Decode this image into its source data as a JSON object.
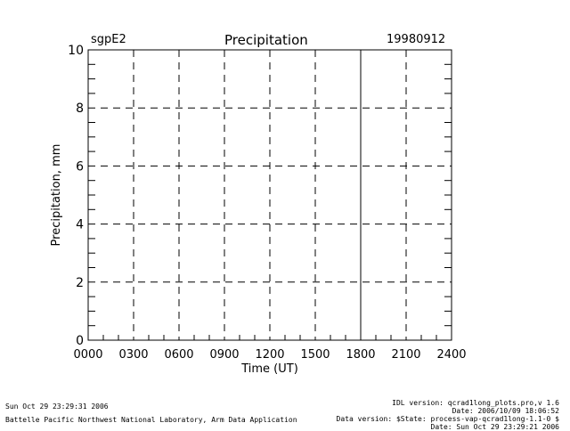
{
  "header": {
    "site": "sgpE2",
    "title": "Precipitation",
    "date": "19980912"
  },
  "chart_data": {
    "type": "line",
    "title": "Precipitation",
    "xlabel": "Time (UT)",
    "ylabel": "Precipitation, mm",
    "xlim": [
      0,
      24
    ],
    "ylim": [
      0,
      10
    ],
    "x_tick_labels": [
      "0000",
      "0300",
      "0600",
      "0900",
      "1200",
      "1500",
      "1800",
      "2100",
      "2400"
    ],
    "y_tick_labels": [
      "0",
      "2",
      "4",
      "6",
      "8",
      "10"
    ],
    "grid": true,
    "series": [],
    "solid_marker_time": "1800"
  },
  "footer": {
    "timestamp": "Sun Oct 29 23:29:31 2006",
    "institution": "Battelle Pacific Northwest National Laboratory, Arm Data Application",
    "idl_version": "IDL version: qcrad1long_plots.pro,v 1.6",
    "idl_date": "Date: 2006/10/09 18:06:52",
    "data_version": "Data version: $State: process-vap-qcrad1long-1.1-0 $",
    "data_date": "Date: Sun Oct 29 23:29:21 2006"
  }
}
